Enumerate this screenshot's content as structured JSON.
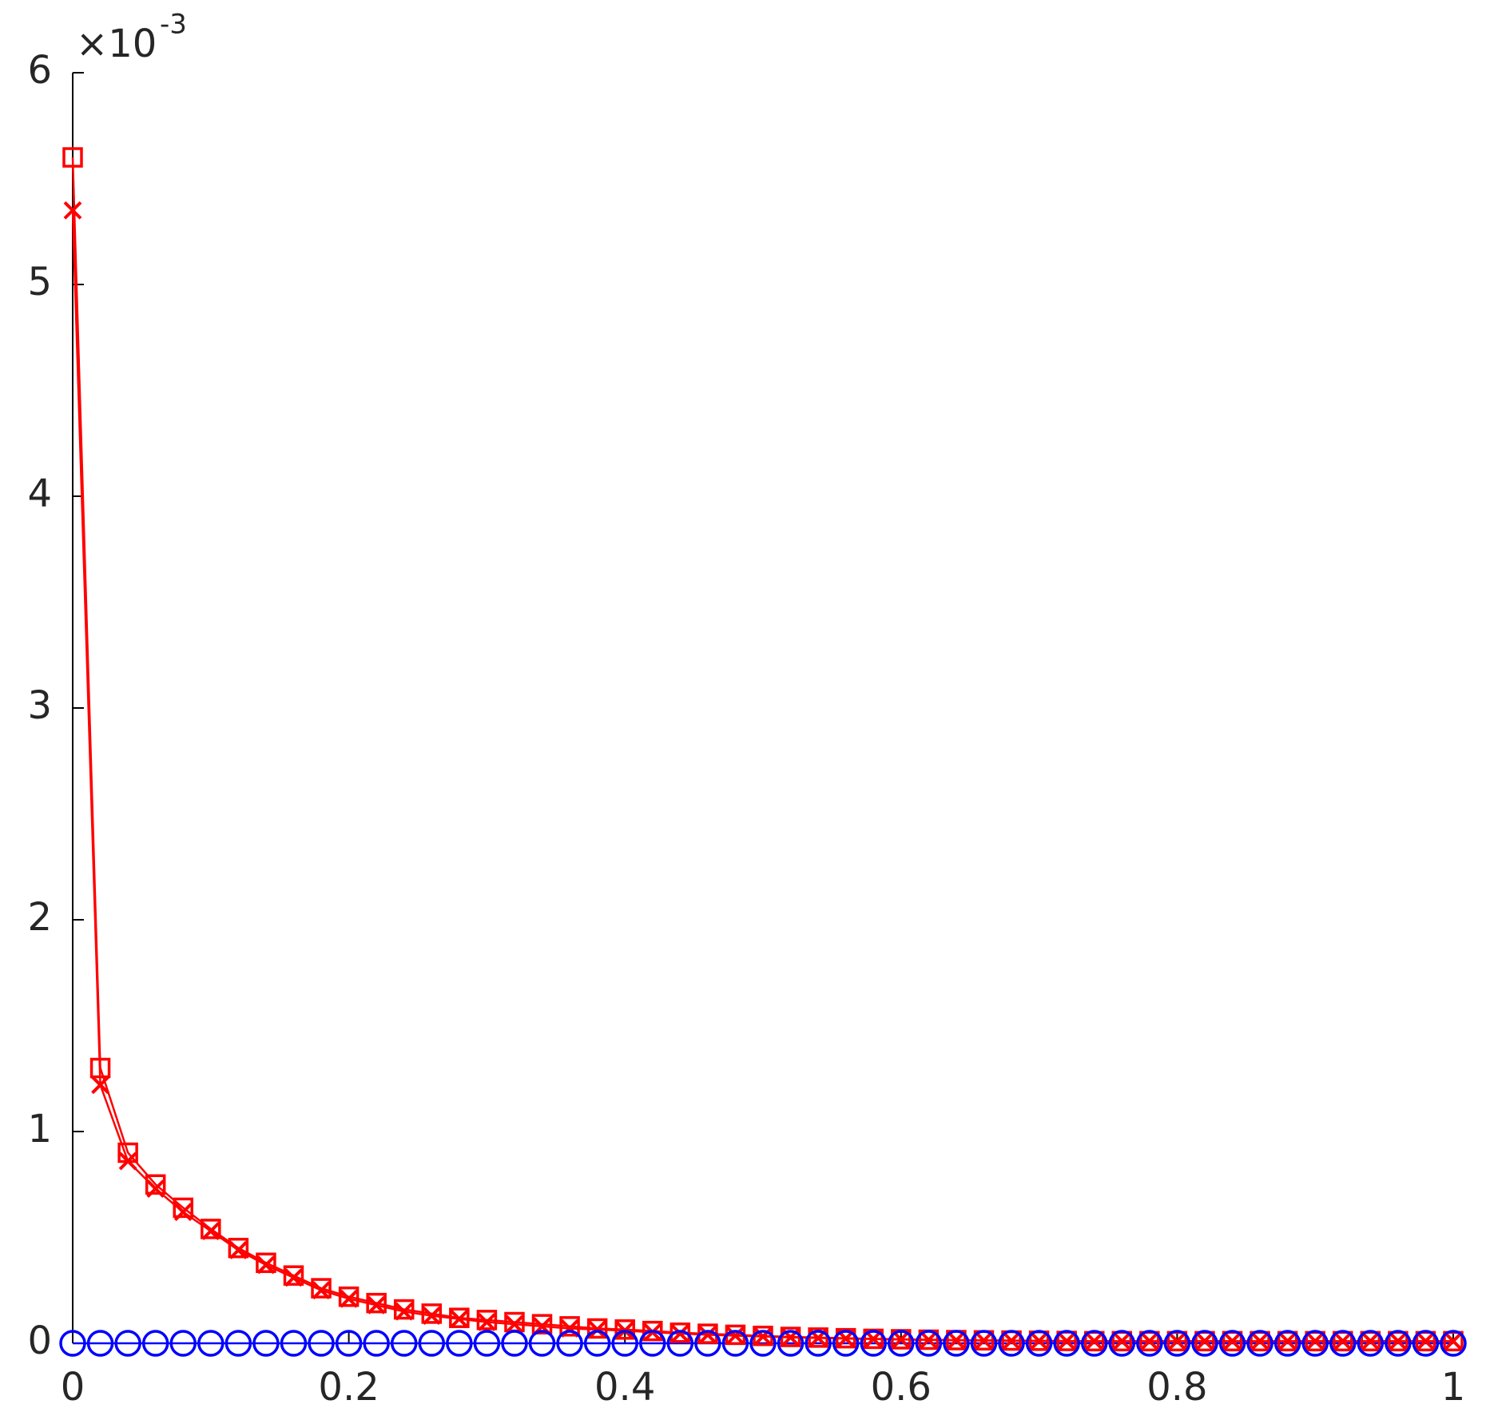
{
  "chart_data": {
    "type": "line",
    "y_multiplier": "×10",
    "y_exponent": "-3",
    "x": [
      0,
      0.02,
      0.04,
      0.06,
      0.08,
      0.1,
      0.12,
      0.14,
      0.16,
      0.18,
      0.2,
      0.22,
      0.24,
      0.26,
      0.28,
      0.3,
      0.32,
      0.34,
      0.36,
      0.38,
      0.4,
      0.42,
      0.44,
      0.46,
      0.48,
      0.5,
      0.52,
      0.54,
      0.56,
      0.58,
      0.6,
      0.62,
      0.64,
      0.66,
      0.68,
      0.7,
      0.72,
      0.74,
      0.76,
      0.78,
      0.8,
      0.82,
      0.84,
      0.86,
      0.88,
      0.9,
      0.92,
      0.94,
      0.96,
      0.98,
      1
    ],
    "series": [
      {
        "color": "#ff0000",
        "marker": "square",
        "values": [
          5.6,
          1.3,
          0.9,
          0.75,
          0.64,
          0.54,
          0.45,
          0.38,
          0.32,
          0.26,
          0.22,
          0.19,
          0.16,
          0.14,
          0.12,
          0.11,
          0.1,
          0.09,
          0.08,
          0.07,
          0.065,
          0.058,
          0.05,
          0.045,
          0.04,
          0.035,
          0.03,
          0.027,
          0.024,
          0.021,
          0.019,
          0.017,
          0.015,
          0.014,
          0.013,
          0.012,
          0.011,
          0.01,
          0.01,
          0.01,
          0.01,
          0.01,
          0.01,
          0.01,
          0.01,
          0.01,
          0.01,
          0.01,
          0.01,
          0.01,
          0.01
        ]
      },
      {
        "color": "#ff0000",
        "marker": "x",
        "values": [
          5.35,
          1.22,
          0.86,
          0.73,
          0.62,
          0.53,
          0.44,
          0.37,
          0.31,
          0.25,
          0.21,
          0.18,
          0.15,
          0.13,
          0.115,
          0.1,
          0.09,
          0.08,
          0.07,
          0.065,
          0.06,
          0.052,
          0.046,
          0.04,
          0.036,
          0.032,
          0.028,
          0.025,
          0.022,
          0.02,
          0.018,
          0.016,
          0.014,
          0.013,
          0.012,
          0.011,
          0.01,
          0.01,
          0.01,
          0.01,
          0.01,
          0.01,
          0.01,
          0.01,
          0.01,
          0.01,
          0.01,
          0.01,
          0.01,
          0.01,
          0.01
        ]
      },
      {
        "color": "#0000ff",
        "marker": "circle",
        "values": [
          0,
          0,
          0,
          0,
          0,
          0,
          0,
          0,
          0,
          0,
          0,
          0,
          0,
          0,
          0,
          0,
          0,
          0,
          0,
          0,
          0,
          0,
          0,
          0,
          0,
          0,
          0,
          0,
          0,
          0,
          0,
          0,
          0,
          0,
          0,
          0,
          0,
          0,
          0,
          0,
          0,
          0,
          0,
          0,
          0,
          0,
          0,
          0,
          0,
          0,
          0
        ]
      }
    ],
    "xlim": [
      0,
      1
    ],
    "xticks": [
      0,
      0.2,
      0.4,
      0.6,
      0.8,
      1
    ],
    "ylim": [
      0,
      6
    ],
    "yticks": [
      0,
      1,
      2,
      3,
      4,
      5,
      6
    ]
  }
}
